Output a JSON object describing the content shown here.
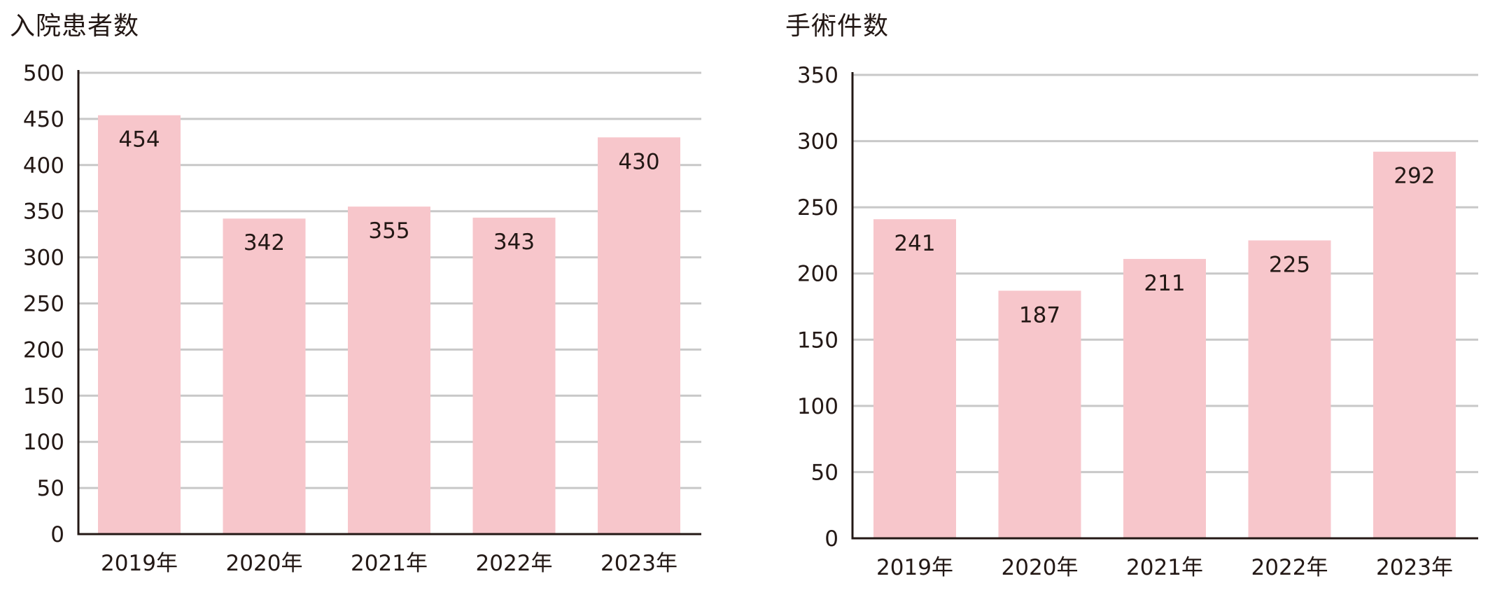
{
  "colors": {
    "bar": "#f7c6cb",
    "grid": "#c8c8c8",
    "axis": "#231815",
    "text": "#231815"
  },
  "chart_data": [
    {
      "type": "bar",
      "title": "入院患者数",
      "categories": [
        "2019年",
        "2020年",
        "2021年",
        "2022年",
        "2023年"
      ],
      "values": [
        454,
        342,
        355,
        343,
        430
      ],
      "yticks": [
        0,
        50,
        100,
        150,
        200,
        250,
        300,
        350,
        400,
        450,
        500
      ],
      "ylim": [
        0,
        500
      ],
      "xlabel": "",
      "ylabel": "",
      "grid": true,
      "data_labels": true
    },
    {
      "type": "bar",
      "title": "手術件数",
      "categories": [
        "2019年",
        "2020年",
        "2021年",
        "2022年",
        "2023年"
      ],
      "values": [
        241,
        187,
        211,
        225,
        292
      ],
      "yticks": [
        0,
        50,
        100,
        150,
        200,
        250,
        300,
        350
      ],
      "ylim": [
        0,
        350
      ],
      "xlabel": "",
      "ylabel": "",
      "grid": true,
      "data_labels": true
    }
  ]
}
